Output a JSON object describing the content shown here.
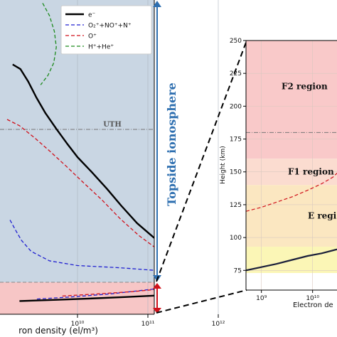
{
  "chart_data": [
    {
      "type": "line",
      "panel": "left",
      "xscale": "log",
      "xlim": [
        1000000000.0,
        1000000000000.0
      ],
      "xticks": [
        {
          "value": 10000000000.0,
          "label": "10¹⁰"
        },
        {
          "value": 100000000000.0,
          "label": "10¹¹"
        },
        {
          "value": 1000000000000.0,
          "label": "10¹²"
        }
      ],
      "xlabel": "ron density (el/m³)",
      "grid": true,
      "legend": {
        "placement": "top-right"
      },
      "region_label": "Topside ionosphere",
      "uth_label": "UTH",
      "colors": {
        "topside_bg": "#c9d6e3",
        "bottomside_bg": "#f7c6c6",
        "arrow_blue": "#2e6fb0",
        "arrow_red": "#d0101a",
        "e": "#000000",
        "molecular": "#1f1fd0",
        "oplus": "#d0101a",
        "light": "#1c8a1c"
      },
      "series": [
        {
          "name": "e⁻",
          "style": "solid",
          "color": "#000000",
          "points": [
            [
              1200000000.0,
              0.795
            ],
            [
              1550000000.0,
              0.78
            ],
            [
              2000000000.0,
              0.74
            ],
            [
              2600000000.0,
              0.69
            ],
            [
              3500000000.0,
              0.64
            ],
            [
              5000000000.0,
              0.59
            ],
            [
              7000000000.0,
              0.545
            ],
            [
              10000000000.0,
              0.5
            ],
            [
              16000000000.0,
              0.452
            ],
            [
              26000000000.0,
              0.4
            ],
            [
              42000000000.0,
              0.345
            ],
            [
              70000000000.0,
              0.29
            ],
            [
              120000000000.0,
              0.245
            ],
            [
              220000000000.0,
              0.205
            ],
            [
              400000000000.0,
              0.172
            ],
            [
              650000000000.0,
              0.145
            ],
            [
              770000000000.0,
              0.115
            ],
            [
              760000000000.0,
              0.098
            ],
            [
              620000000000.0,
              0.082
            ],
            [
              350000000000.0,
              0.068
            ],
            [
              140000000000.0,
              0.06
            ],
            [
              50000000000.0,
              0.055
            ],
            [
              15000000000.0,
              0.05
            ],
            [
              5000000000.0,
              0.046
            ],
            [
              1500000000.0,
              0.042
            ]
          ]
        },
        {
          "name": "O₂⁺+NO⁺+N⁺",
          "style": "dashed",
          "color": "#1f1fd0",
          "points": [
            [
              1100000000.0,
              0.3
            ],
            [
              1300000000.0,
              0.27
            ],
            [
              1600000000.0,
              0.235
            ],
            [
              2200000000.0,
              0.2
            ],
            [
              4000000000.0,
              0.17
            ],
            [
              10000000000.0,
              0.155
            ],
            [
              40000000000.0,
              0.148
            ],
            [
              120000000000.0,
              0.14
            ],
            [
              260000000000.0,
              0.12
            ],
            [
              240000000000.0,
              0.1
            ],
            [
              120000000000.0,
              0.08
            ],
            [
              30000000000.0,
              0.065
            ],
            [
              8000000000.0,
              0.055
            ],
            [
              2500000000.0,
              0.048
            ]
          ]
        },
        {
          "name": "O⁺",
          "style": "dashed",
          "color": "#d0101a",
          "points": [
            [
              1000000000.0,
              0.62
            ],
            [
              1500000000.0,
              0.6
            ],
            [
              2500000000.0,
              0.56
            ],
            [
              4000000000.0,
              0.52
            ],
            [
              7000000000.0,
              0.47
            ],
            [
              12000000000.0,
              0.42
            ],
            [
              22000000000.0,
              0.365
            ],
            [
              40000000000.0,
              0.305
            ],
            [
              75000000000.0,
              0.25
            ],
            [
              140000000000.0,
              0.205
            ],
            [
              260000000000.0,
              0.17
            ],
            [
              450000000000.0,
              0.145
            ],
            [
              720000000000.0,
              0.122
            ],
            [
              700000000000.0,
              0.108
            ],
            [
              450000000000.0,
              0.095
            ],
            [
              180000000000.0,
              0.082
            ],
            [
              60000000000.0,
              0.072
            ],
            [
              20000000000.0,
              0.065
            ],
            [
              6000000000.0,
              0.058
            ]
          ]
        },
        {
          "name": "H⁺+He⁺",
          "style": "dashed",
          "color": "#1c8a1c",
          "points": [
            [
              3200000000.0,
              0.99
            ],
            [
              4000000000.0,
              0.95
            ],
            [
              4700000000.0,
              0.9
            ],
            [
              5000000000.0,
              0.85
            ],
            [
              4600000000.0,
              0.8
            ],
            [
              3800000000.0,
              0.76
            ],
            [
              3000000000.0,
              0.73
            ]
          ]
        }
      ]
    },
    {
      "type": "line",
      "panel": "right",
      "xscale": "log",
      "xlim": [
        500000000.0,
        30000000000.0
      ],
      "xticks": [
        {
          "value": 1000000000.0,
          "label": "10⁹"
        },
        {
          "value": 10000000000.0,
          "label": "10¹⁰"
        }
      ],
      "xlabel": "Electron de",
      "ylabel": "Height (km)",
      "ylim": [
        60,
        250
      ],
      "yticks": [
        75,
        100,
        125,
        150,
        175,
        200,
        225,
        250
      ],
      "grid": true,
      "uth_height": 180,
      "regions": [
        {
          "label": "F2 region",
          "from": 160,
          "to": 250,
          "color": "#f9c9c9"
        },
        {
          "label": "F1 region",
          "from": 140,
          "to": 160,
          "color": "#fbdcd0"
        },
        {
          "label": "E regi",
          "from": 93,
          "to": 140,
          "color": "#fbe7c1"
        },
        {
          "label": "",
          "from": 73,
          "to": 93,
          "color": "#fbf6b6"
        }
      ],
      "series": [
        {
          "name": "e⁻",
          "style": "solid",
          "color": "#1a1f3a",
          "points": [
            [
              500000000.0,
              75
            ],
            [
              1000000000.0,
              77.5
            ],
            [
              2000000000.0,
              80
            ],
            [
              4000000000.0,
              83
            ],
            [
              8000000000.0,
              86
            ],
            [
              15000000000.0,
              88
            ],
            [
              30000000000.0,
              91
            ]
          ]
        },
        {
          "name": "O⁺",
          "style": "dashed",
          "color": "#d0101a",
          "points": [
            [
              500000000.0,
              120
            ],
            [
              1000000000.0,
              123
            ],
            [
              2000000000.0,
              127
            ],
            [
              4000000000.0,
              131
            ],
            [
              8000000000.0,
              136
            ],
            [
              15000000000.0,
              141
            ],
            [
              25000000000.0,
              146
            ],
            [
              30000000000.0,
              149
            ]
          ]
        }
      ]
    }
  ]
}
